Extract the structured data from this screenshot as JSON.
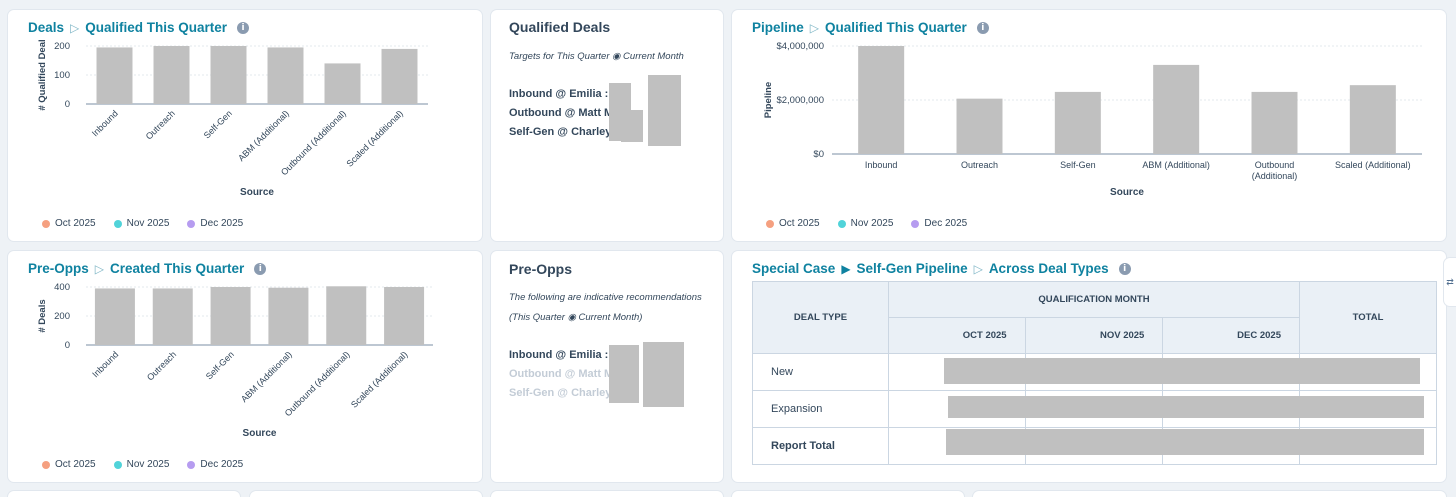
{
  "deals_card": {
    "title_a": "Deals",
    "title_b": "Qualified This Quarter",
    "ylabel": "# Qualified Deal",
    "xlabel": "Source"
  },
  "qualified_card": {
    "title": "Qualified Deals",
    "subtitle": "Targets for This Quarter ◉ Current Month",
    "lines": [
      "Inbound @ Emilia :",
      "Outbound @ Matt M. :",
      "Self-Gen @ Charley :"
    ]
  },
  "pipeline_card": {
    "title_a": "Pipeline",
    "title_b": "Qualified This Quarter",
    "ylabel": "Pipeline",
    "xlabel": "Source"
  },
  "preopps_chart_card": {
    "title_a": "Pre-Opps",
    "title_b": "Created This Quarter",
    "ylabel": "# Deals",
    "xlabel": "Source"
  },
  "preopps_text_card": {
    "title": "Pre-Opps",
    "subtitle_1": "The following are indicative recommendations",
    "subtitle_2": "(This Quarter ◉ Current Month)",
    "lines": [
      "Inbound @ Emilia :",
      "Outbound @ Matt M.",
      "Self-Gen @ Charley"
    ]
  },
  "special_card": {
    "title_a": "Special Case",
    "title_b": "Self-Gen Pipeline",
    "title_c": "Across Deal Types",
    "head_deal_type": "DEAL TYPE",
    "head_qual_month": "QUALIFICATION MONTH",
    "head_total": "TOTAL",
    "months": [
      "OCT 2025",
      "NOV 2025",
      "DEC 2025"
    ],
    "rows": [
      "New",
      "Expansion",
      "Report Total"
    ]
  },
  "legend": [
    "Oct 2025",
    "Nov 2025",
    "Dec 2025"
  ],
  "colors": {
    "oct": "#f5a080",
    "nov": "#51d3d9",
    "dec": "#b69cf0",
    "accent": "#0f82a0"
  },
  "chart_data": [
    {
      "type": "bar",
      "title": "Deals ▷ Qualified This Quarter",
      "xlabel": "Source",
      "ylabel": "# Qualified Deal",
      "categories": [
        "Inbound",
        "Outreach",
        "Self-Gen",
        "ABM (Additional)",
        "Outbound (Additional)",
        "Scaled (Additional)"
      ],
      "values": [
        195,
        200,
        200,
        195,
        140,
        190
      ],
      "ylim": [
        0,
        200
      ],
      "yticks": [
        "0",
        "100",
        "200"
      ],
      "legend": [
        "Oct 2025",
        "Nov 2025",
        "Dec 2025"
      ]
    },
    {
      "type": "bar",
      "title": "Pipeline ▷ Qualified This Quarter",
      "xlabel": "Source",
      "ylabel": "Pipeline",
      "categories": [
        "Inbound",
        "Outreach",
        "Self-Gen",
        "ABM (Additional)",
        "Outbound (Additional)",
        "Scaled (Additional)"
      ],
      "values": [
        4000000,
        2050000,
        2300000,
        3300000,
        2300000,
        2550000
      ],
      "ylim": [
        0,
        4000000
      ],
      "yticks": [
        "$0",
        "$2,000,000",
        "$4,000,000"
      ],
      "legend": [
        "Oct 2025",
        "Nov 2025",
        "Dec 2025"
      ]
    },
    {
      "type": "bar",
      "title": "Pre-Opps ▷ Created This Quarter",
      "xlabel": "Source",
      "ylabel": "# Deals",
      "categories": [
        "Inbound",
        "Outreach",
        "Self-Gen",
        "ABM (Additional)",
        "Outbound (Additional)",
        "Scaled (Additional)"
      ],
      "values": [
        390,
        390,
        400,
        395,
        405,
        400
      ],
      "ylim": [
        0,
        400
      ],
      "yticks": [
        "0",
        "200",
        "400"
      ],
      "legend": [
        "Oct 2025",
        "Nov 2025",
        "Dec 2025"
      ]
    }
  ]
}
